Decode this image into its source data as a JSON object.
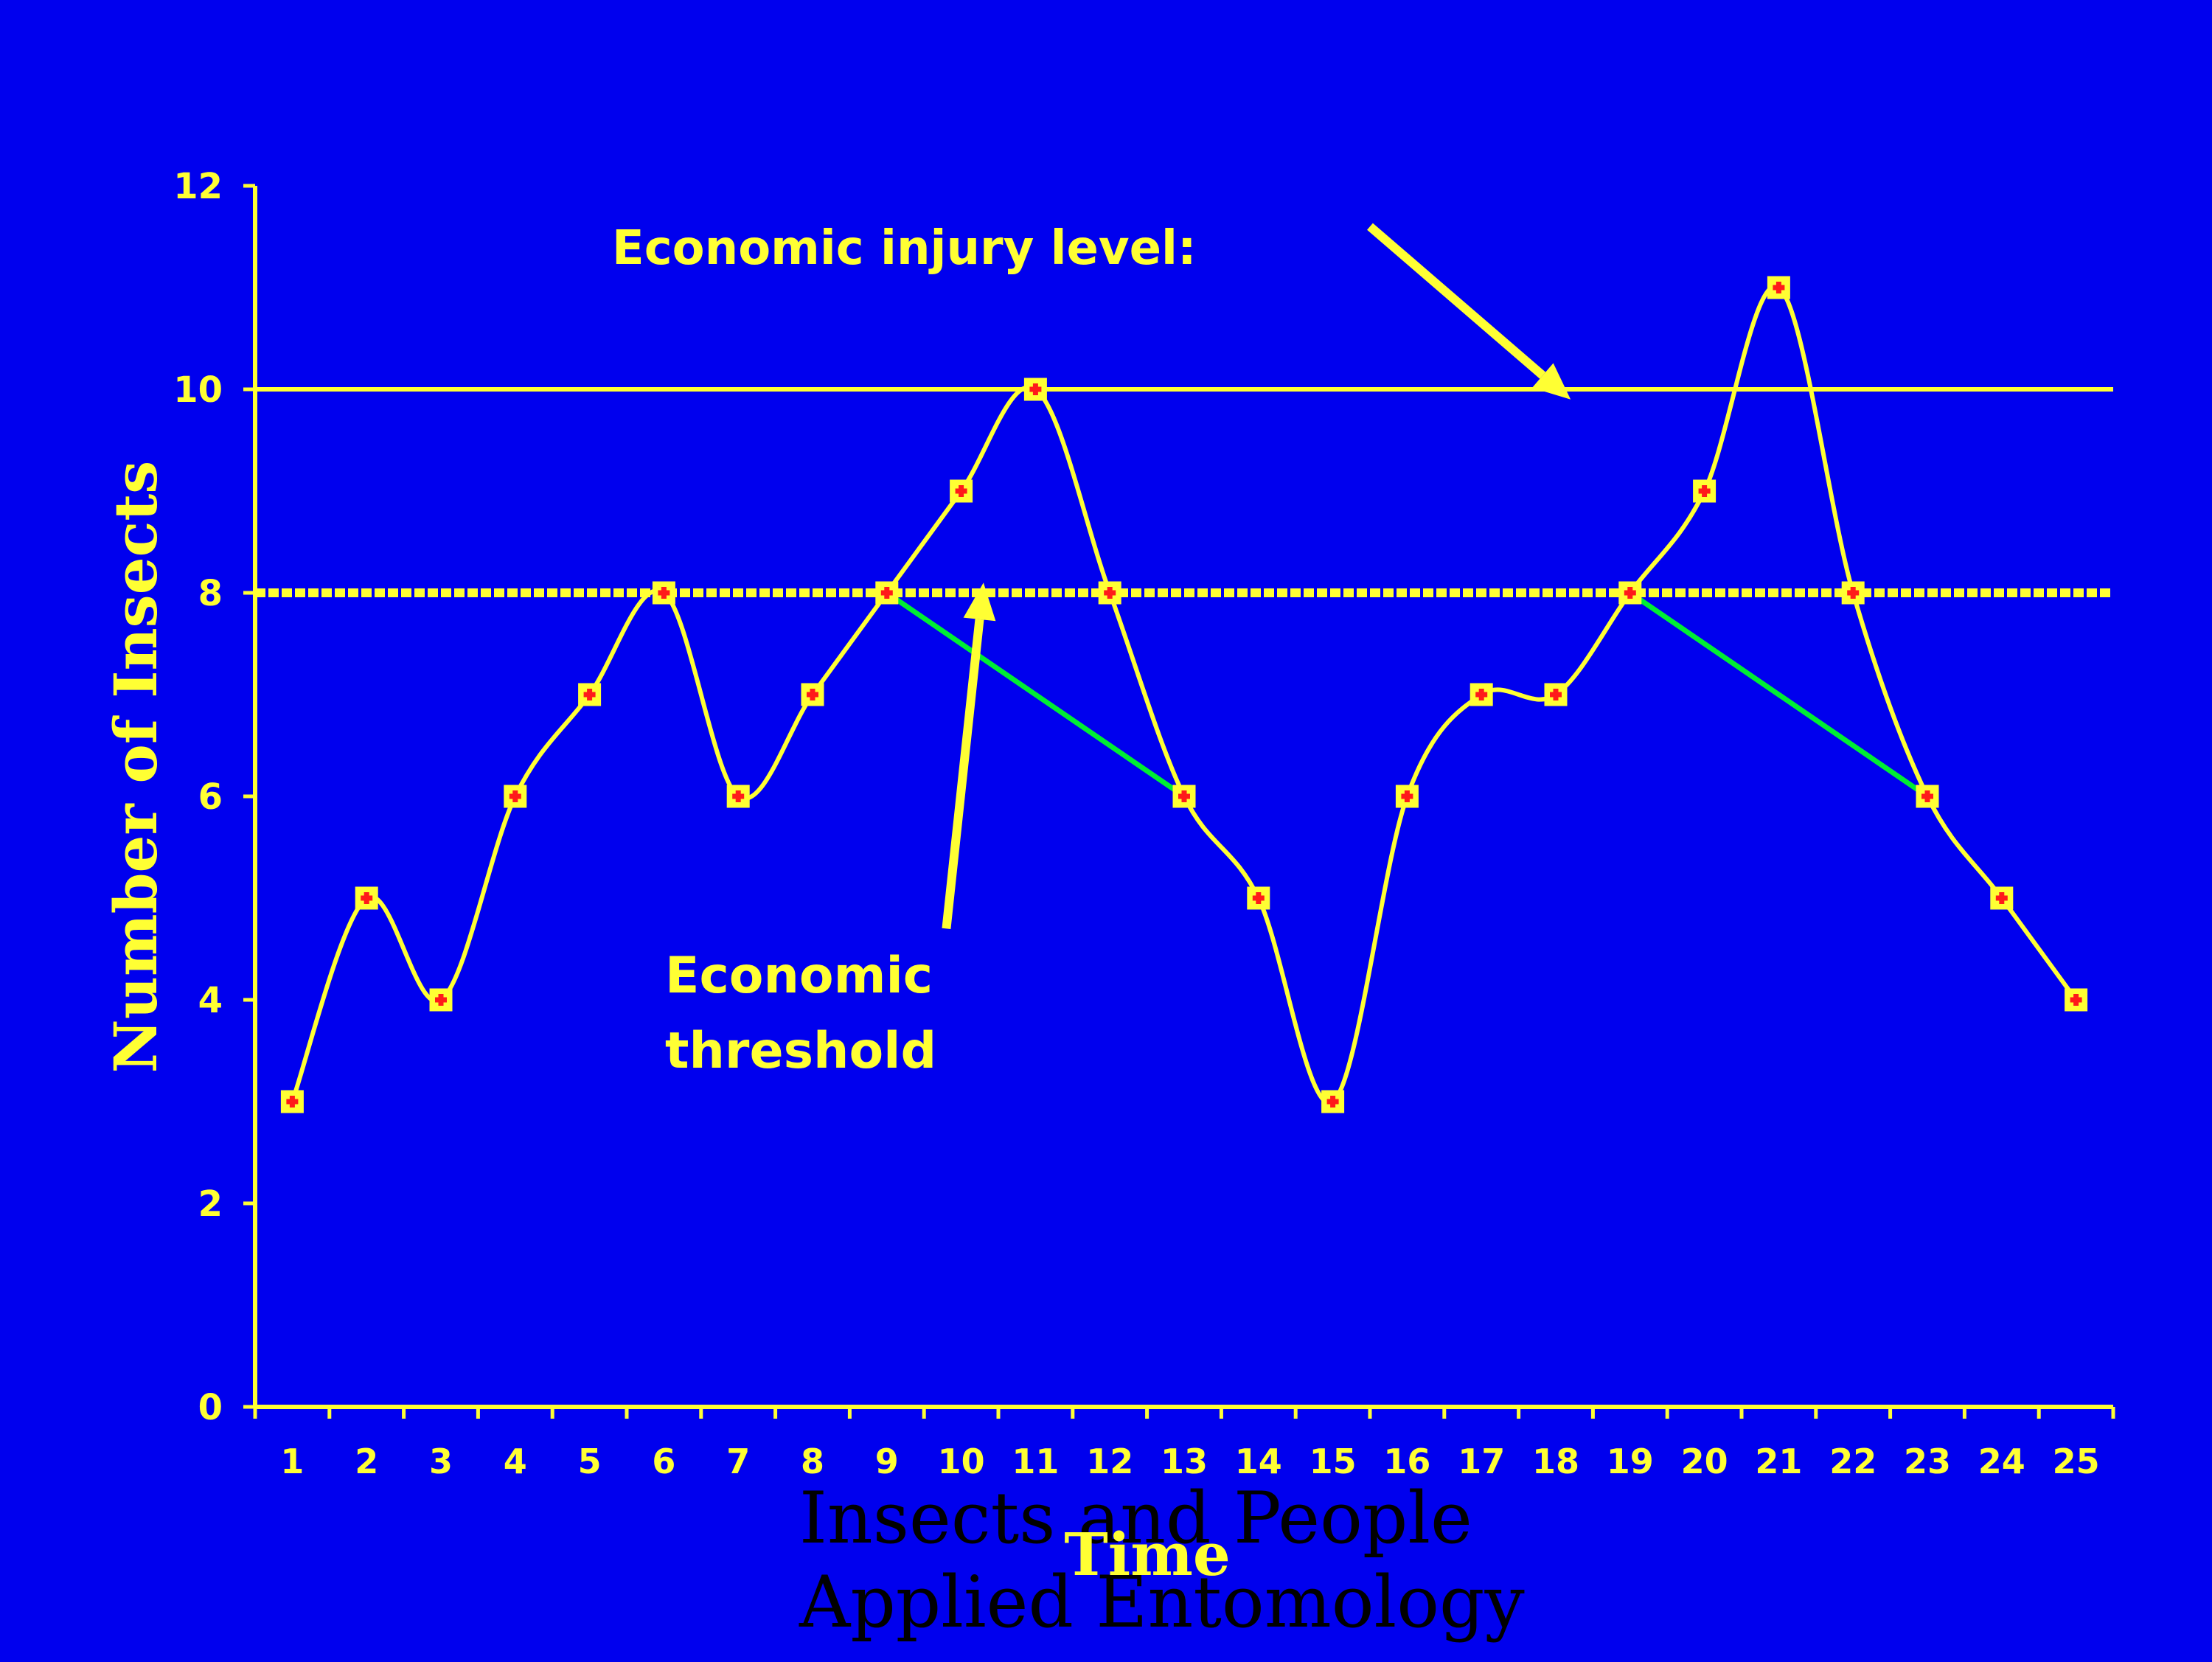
{
  "chart_data": {
    "type": "line",
    "ylabel": "Number of Insects",
    "xlabel": "Time",
    "x": [
      1,
      2,
      3,
      4,
      5,
      6,
      7,
      8,
      9,
      10,
      11,
      12,
      13,
      14,
      15,
      16,
      17,
      18,
      19,
      20,
      21,
      22,
      23,
      24,
      25
    ],
    "series": [
      {
        "values": [
          3,
          5,
          4,
          6,
          7,
          8,
          6,
          7,
          8,
          9,
          10,
          8,
          6,
          5,
          3,
          6,
          7,
          7,
          8,
          9,
          11,
          8,
          6,
          5,
          4
        ]
      }
    ],
    "ylim": [
      0,
      12
    ],
    "yticks": [
      0,
      2,
      4,
      6,
      8,
      10,
      12
    ],
    "xlim": [
      0.5,
      25.5
    ],
    "grid": false,
    "reference_lines": [
      {
        "y": 10,
        "style": "solid"
      },
      {
        "y": 8,
        "style": "dashed"
      }
    ],
    "decline_lines": [
      {
        "from": [
          9,
          8
        ],
        "to": [
          13,
          6
        ]
      },
      {
        "from": [
          19,
          8
        ],
        "to": [
          23,
          6
        ]
      }
    ],
    "annotations": [
      {
        "lines": [
          "Economic injury level:"
        ],
        "arrow_from": [
          15.5,
          11.6
        ],
        "arrow_to": [
          18.2,
          9.9
        ]
      },
      {
        "lines": [
          "Economic",
          "threshold"
        ],
        "arrow_from": [
          9.8,
          4.7
        ],
        "arrow_to": [
          10.3,
          8.1
        ]
      }
    ],
    "footer_text": [
      "Insects and People",
      "Applied Entomology"
    ]
  },
  "colors": {
    "background": "#0000ee",
    "axis": "#ffff33",
    "line": "#ffff33",
    "marker_fill": "#ff1a1a",
    "decline": "#00ee33",
    "footer": "#000000"
  }
}
